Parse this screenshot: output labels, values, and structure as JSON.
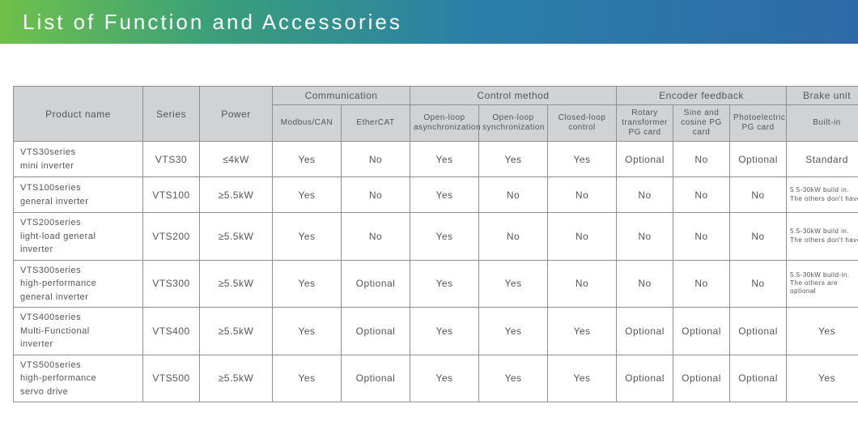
{
  "title": "List of Function and Accessories",
  "header_gradient": [
    "#6fc14a",
    "#3a9f7a",
    "#2a7fa8",
    "#2f6aa8"
  ],
  "table": {
    "top_headers": {
      "product_name": "Product name",
      "series": "Series",
      "power": "Power",
      "communication": "Communication",
      "control_method": "Control method",
      "encoder_feedback": "Encoder feedback",
      "brake_unit": "Brake unit"
    },
    "sub_headers": {
      "modbus_can": "Modbus/CAN",
      "ethercat": "EtherCAT",
      "open_async": "Open-loop asynchronization",
      "open_sync": "Open-loop synchronization",
      "closed_loop": "Closed-loop control",
      "rotary": "Rotary transformer PG card",
      "sine_cos": "Sine and cosine PG card",
      "photo": "Photoelectric PG card",
      "builtin": "Built-in"
    },
    "rows": [
      {
        "name": "VTS30series\nmini inverter",
        "series": "VTS30",
        "power": "≤4kW",
        "modbus": "Yes",
        "ethercat": "No",
        "open_async": "Yes",
        "open_sync": "Yes",
        "closed_loop": "Yes",
        "rotary": "Optional",
        "sine_cos": "No",
        "photo": "Optional",
        "brake": "Standard",
        "brake_small": false
      },
      {
        "name": "VTS100series\ngeneral inverter",
        "series": "VTS100",
        "power": "≥5.5kW",
        "modbus": "Yes",
        "ethercat": "No",
        "open_async": "Yes",
        "open_sync": "No",
        "closed_loop": "No",
        "rotary": "No",
        "sine_cos": "No",
        "photo": "No",
        "brake": "5.5-30kW build in.\nThe others don't have",
        "brake_small": true
      },
      {
        "name": "VTS200series\nlight-load general\ninverter",
        "series": "VTS200",
        "power": "≥5.5kW",
        "modbus": "Yes",
        "ethercat": "No",
        "open_async": "Yes",
        "open_sync": "No",
        "closed_loop": "No",
        "rotary": "No",
        "sine_cos": "No",
        "photo": "No",
        "brake": "5.5-30kW build in.\nThe others don't have",
        "brake_small": true
      },
      {
        "name": "VTS300series\nhigh-performance\ngeneral inverter",
        "series": "VTS300",
        "power": "≥5.5kW",
        "modbus": "Yes",
        "ethercat": "Optional",
        "open_async": "Yes",
        "open_sync": "Yes",
        "closed_loop": "No",
        "rotary": "No",
        "sine_cos": "No",
        "photo": "No",
        "brake": "5.5-30kW build-in.\nThe others are optional",
        "brake_small": true
      },
      {
        "name": "VTS400series\nMulti-Functional\ninverter",
        "series": "VTS400",
        "power": "≥5.5kW",
        "modbus": "Yes",
        "ethercat": "Optional",
        "open_async": "Yes",
        "open_sync": "Yes",
        "closed_loop": "Yes",
        "rotary": "Optional",
        "sine_cos": "Optional",
        "photo": "Optional",
        "brake": "Yes",
        "brake_small": false
      },
      {
        "name": "VTS500series\nhigh-performance\nservo drive",
        "series": "VTS500",
        "power": "≥5.5kW",
        "modbus": "Yes",
        "ethercat": "Optional",
        "open_async": "Yes",
        "open_sync": "Yes",
        "closed_loop": "Yes",
        "rotary": "Optional",
        "sine_cos": "Optional",
        "photo": "Optional",
        "brake": "Yes",
        "brake_small": false
      }
    ]
  }
}
